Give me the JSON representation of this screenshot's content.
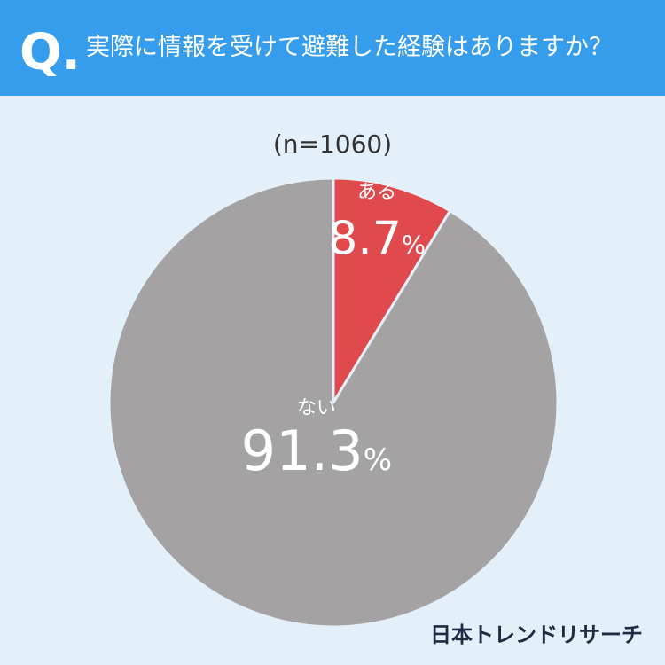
{
  "chart_data": {
    "type": "pie",
    "badge": "Q.",
    "title": "実際に情報を受けて避難した経験はありますか？",
    "subtitle": "(n=1060)",
    "categories": [
      "ある",
      "ない"
    ],
    "values": [
      8.7,
      91.3
    ],
    "value_labels": [
      "8.7%",
      "91.3%"
    ],
    "colors": [
      "#e04a4c",
      "#a4a2a3"
    ],
    "source": "日本トレンドリサーチ"
  }
}
